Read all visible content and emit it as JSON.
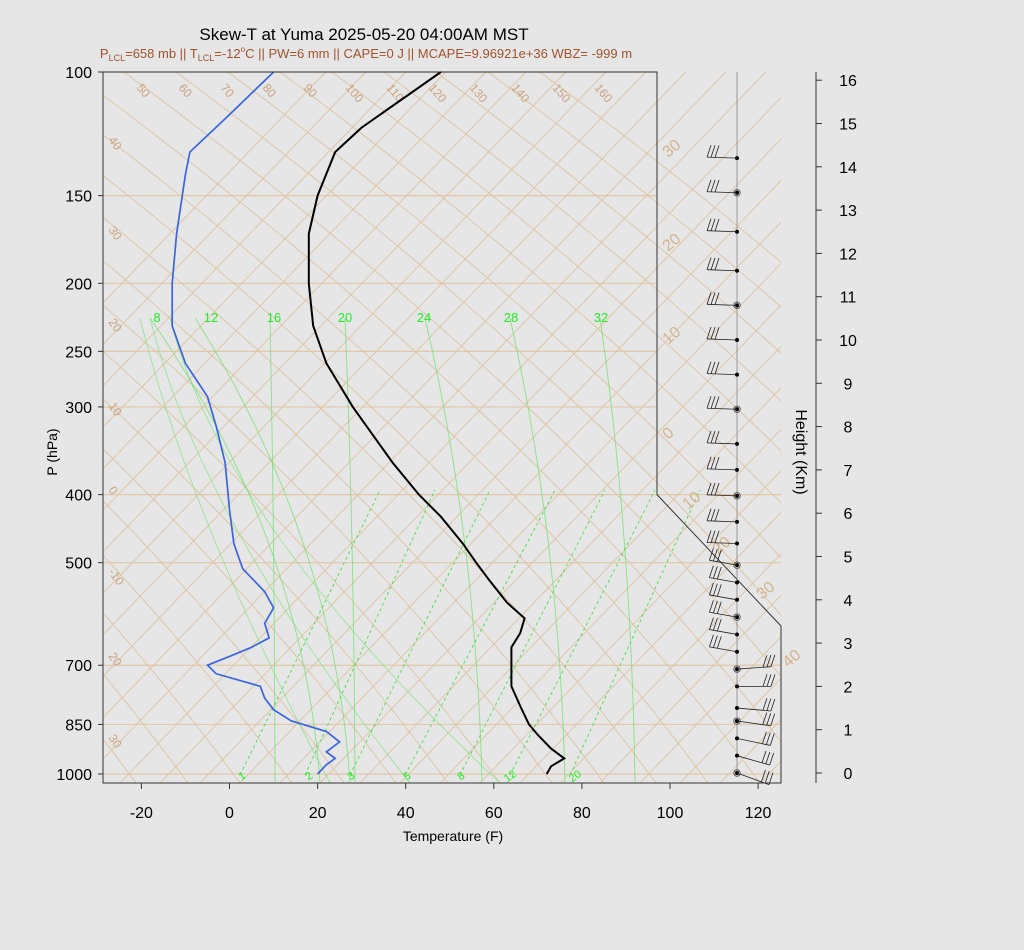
{
  "chart_data": {
    "type": "line",
    "title": "Skew-T at Yuma 2025-05-20 04:00AM MST",
    "subtitle": {
      "lcl_p_label": "P",
      "lcl_p_sub": "LCL",
      "lcl_p_val": "=658 mb || T",
      "lcl_t_sub": "LCL",
      "lcl_t_val": "=-12",
      "deg": "o",
      "rest": "C || PW=6 mm || CAPE=0 J || MCAPE=9.96921e+36 WBZ= -999 m"
    },
    "xlabel": "Temperature (F)",
    "ylabel": "P (hPa)",
    "y2label": "Height (Km)",
    "xlim": [
      -28,
      125
    ],
    "ylim": [
      1030,
      100
    ],
    "x_ticks": [
      -20,
      0,
      20,
      40,
      60,
      80,
      100,
      120
    ],
    "y_ticks": [
      100,
      150,
      200,
      250,
      300,
      400,
      500,
      700,
      850,
      1000
    ],
    "height_ticks": [
      0,
      1,
      2,
      3,
      4,
      5,
      6,
      7,
      8,
      9,
      10,
      11,
      12,
      13,
      14,
      15,
      16
    ],
    "isotherm_labels": [
      "40",
      "30",
      "20",
      "10",
      "0",
      "10",
      "20",
      "30",
      "40"
    ],
    "dry_adiabat_labels": [
      "50",
      "60",
      "70",
      "80",
      "90",
      "100",
      "110",
      "120",
      "130",
      "140",
      "150",
      "160"
    ],
    "left_tan_labels": [
      "40",
      "30",
      "20",
      "10",
      "0",
      "-10",
      "20",
      "30"
    ],
    "mixing_ratio_labels_top": [
      "8",
      "12",
      "16",
      "20",
      "24",
      "28",
      "32"
    ],
    "mixing_ratio_labels_bottom": [
      "1",
      "2",
      "3",
      "5",
      "8",
      "12",
      "20"
    ],
    "series": [
      {
        "kind": "temperature",
        "color": "#000000",
        "points": [
          [
            72,
            1000
          ],
          [
            73,
            975
          ],
          [
            76,
            950
          ],
          [
            73,
            920
          ],
          [
            70,
            880
          ],
          [
            68,
            850
          ],
          [
            66,
            800
          ],
          [
            64,
            750
          ],
          [
            64,
            700
          ],
          [
            64,
            660
          ],
          [
            66,
            630
          ],
          [
            67,
            600
          ],
          [
            63,
            570
          ],
          [
            59,
            530
          ],
          [
            56,
            500
          ],
          [
            53,
            470
          ],
          [
            48,
            430
          ],
          [
            43,
            400
          ],
          [
            37,
            360
          ],
          [
            28,
            300
          ],
          [
            22,
            260
          ],
          [
            19,
            230
          ],
          [
            18,
            200
          ],
          [
            18,
            170
          ],
          [
            20,
            150
          ],
          [
            24,
            130
          ],
          [
            30,
            120
          ],
          [
            48,
            100
          ]
        ]
      },
      {
        "kind": "dewpoint",
        "color": "#3a66dd",
        "points": [
          [
            20,
            1000
          ],
          [
            22,
            970
          ],
          [
            24,
            950
          ],
          [
            22,
            930
          ],
          [
            25,
            900
          ],
          [
            22,
            870
          ],
          [
            14,
            840
          ],
          [
            10,
            810
          ],
          [
            8,
            780
          ],
          [
            7,
            750
          ],
          [
            -3,
            720
          ],
          [
            -5,
            700
          ],
          [
            0,
            680
          ],
          [
            5,
            660
          ],
          [
            9,
            640
          ],
          [
            8,
            610
          ],
          [
            10,
            580
          ],
          [
            8,
            550
          ],
          [
            3,
            510
          ],
          [
            1,
            470
          ],
          [
            0,
            420
          ],
          [
            -1,
            360
          ],
          [
            -3,
            320
          ],
          [
            -5,
            290
          ],
          [
            -10,
            260
          ],
          [
            -13,
            230
          ],
          [
            -13,
            200
          ],
          [
            -12,
            170
          ],
          [
            -10,
            140
          ],
          [
            -9,
            130
          ],
          [
            0,
            115
          ],
          [
            10,
            100
          ]
        ]
      }
    ],
    "wind": {
      "barb_x": 115,
      "levels_km": [
        0,
        0.4,
        0.8,
        1.2,
        1.5,
        2.0,
        2.4,
        2.8,
        3.2,
        3.6,
        4.0,
        4.4,
        4.8,
        5.3,
        5.8,
        6.4,
        7.0,
        7.6,
        8.4,
        9.2,
        10.0,
        10.8,
        11.6,
        12.5,
        13.4,
        14.2
      ]
    },
    "legend": "none",
    "grid": true
  }
}
